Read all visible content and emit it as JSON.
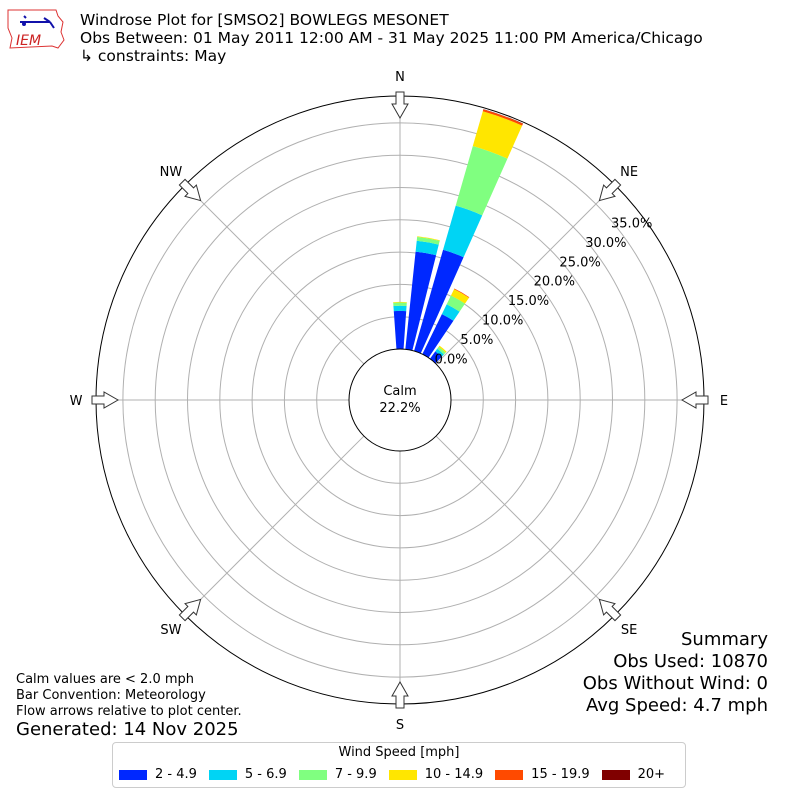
{
  "header": {
    "logo_text": "IEM",
    "title": "Windrose Plot for [SMSO2] BOWLEGS MESONET",
    "subtitle": "Obs Between: 01 May 2011 12:00 AM - 31 May 2025 11:00 PM America/Chicago",
    "constraints": "↳ constraints: May"
  },
  "summary": {
    "title": "Summary",
    "obs_used": "Obs Used: 10870",
    "obs_without_wind": "Obs Without Wind: 0",
    "avg_speed": "Avg Speed: 4.7 mph"
  },
  "notes": [
    "Calm values are < 2.0 mph",
    "Bar Convention: Meteorology",
    "Flow arrows relative to plot center."
  ],
  "generated": "Generated: 14 Nov 2025",
  "chart_data": {
    "type": "windrose",
    "calm_label": "Calm",
    "calm_value": "22.2%",
    "compass_labels": [
      "N",
      "NE",
      "E",
      "SE",
      "S",
      "SW",
      "W",
      "NW"
    ],
    "radial_ticks": [
      "0.0%",
      "5.0%",
      "10.0%",
      "15.0%",
      "20.0%",
      "25.0%",
      "30.0%",
      "35.0%"
    ],
    "radial_tick_values": [
      0,
      5,
      10,
      15,
      20,
      25,
      30,
      35
    ],
    "legend": {
      "title": "Wind Speed [mph]",
      "placement": "bottom"
    },
    "bins": [
      {
        "name": "2 - 4.9",
        "color": "#0028ff"
      },
      {
        "name": "5 - 6.9",
        "color": "#00d4f4"
      },
      {
        "name": "7 - 9.9",
        "color": "#80ff80"
      },
      {
        "name": "10 - 14.9",
        "color": "#ffe600"
      },
      {
        "name": "15 - 19.9",
        "color": "#ff4a00"
      },
      {
        "name": "20+",
        "color": "#800000"
      }
    ],
    "directions_deg": [
      0,
      10,
      20,
      30,
      40
    ],
    "values_percent": [
      [
        5.9,
        0.8,
        0.5,
        0.1,
        0,
        0
      ],
      [
        15.2,
        1.7,
        0.6,
        0.1,
        0,
        0
      ],
      [
        16.3,
        7.1,
        9.6,
        5.6,
        0.3,
        0.05
      ],
      [
        6.9,
        1.7,
        1.5,
        1.1,
        0.1,
        0
      ],
      [
        1.4,
        0.5,
        0.4,
        0.2,
        0,
        0
      ]
    ]
  }
}
